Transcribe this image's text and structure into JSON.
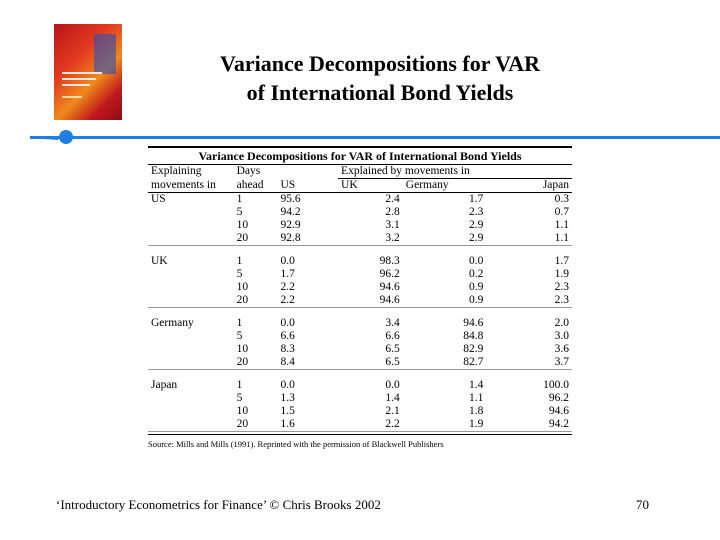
{
  "slide": {
    "title_line1": "Variance Decompositions for VAR",
    "title_line2": "of International Bond Yields",
    "footer": "‘Introductory Econometrics for Finance’ © Chris Brooks 2002",
    "page_number": "70",
    "accent_color": "#1f7fe0"
  },
  "table": {
    "title": "Variance Decompositions for VAR of International Bond Yields",
    "header_row1": [
      "Explaining",
      "Days",
      "",
      "Explained by movements in",
      "",
      ""
    ],
    "header_row2": [
      "movements in",
      "ahead",
      "US",
      "UK",
      "Germany",
      "Japan"
    ],
    "groups": [
      {
        "name": "US",
        "rows": [
          [
            "1",
            "95.6",
            "2.4",
            "1.7",
            "0.3"
          ],
          [
            "5",
            "94.2",
            "2.8",
            "2.3",
            "0.7"
          ],
          [
            "10",
            "92.9",
            "3.1",
            "2.9",
            "1.1"
          ],
          [
            "20",
            "92.8",
            "3.2",
            "2.9",
            "1.1"
          ]
        ]
      },
      {
        "name": "UK",
        "rows": [
          [
            "1",
            "0.0",
            "98.3",
            "0.0",
            "1.7"
          ],
          [
            "5",
            "1.7",
            "96.2",
            "0.2",
            "1.9"
          ],
          [
            "10",
            "2.2",
            "94.6",
            "0.9",
            "2.3"
          ],
          [
            "20",
            "2.2",
            "94.6",
            "0.9",
            "2.3"
          ]
        ]
      },
      {
        "name": "Germany",
        "rows": [
          [
            "1",
            "0.0",
            "3.4",
            "94.6",
            "2.0"
          ],
          [
            "5",
            "6.6",
            "6.6",
            "84.8",
            "3.0"
          ],
          [
            "10",
            "8.3",
            "6.5",
            "82.9",
            "3.6"
          ],
          [
            "20",
            "8.4",
            "6.5",
            "82.7",
            "3.7"
          ]
        ]
      },
      {
        "name": "Japan",
        "rows": [
          [
            "1",
            "0.0",
            "0.0",
            "1.4",
            "100.0"
          ],
          [
            "5",
            "1.3",
            "1.4",
            "1.1",
            "96.2"
          ],
          [
            "10",
            "1.5",
            "2.1",
            "1.8",
            "94.6"
          ],
          [
            "20",
            "1.6",
            "2.2",
            "1.9",
            "94.2"
          ]
        ]
      }
    ],
    "source": "Source: Mills and Mills (1991). Reprinted with the permission of Blackwell Publishers"
  },
  "book_cover": {
    "icon": "book-cover-image"
  }
}
